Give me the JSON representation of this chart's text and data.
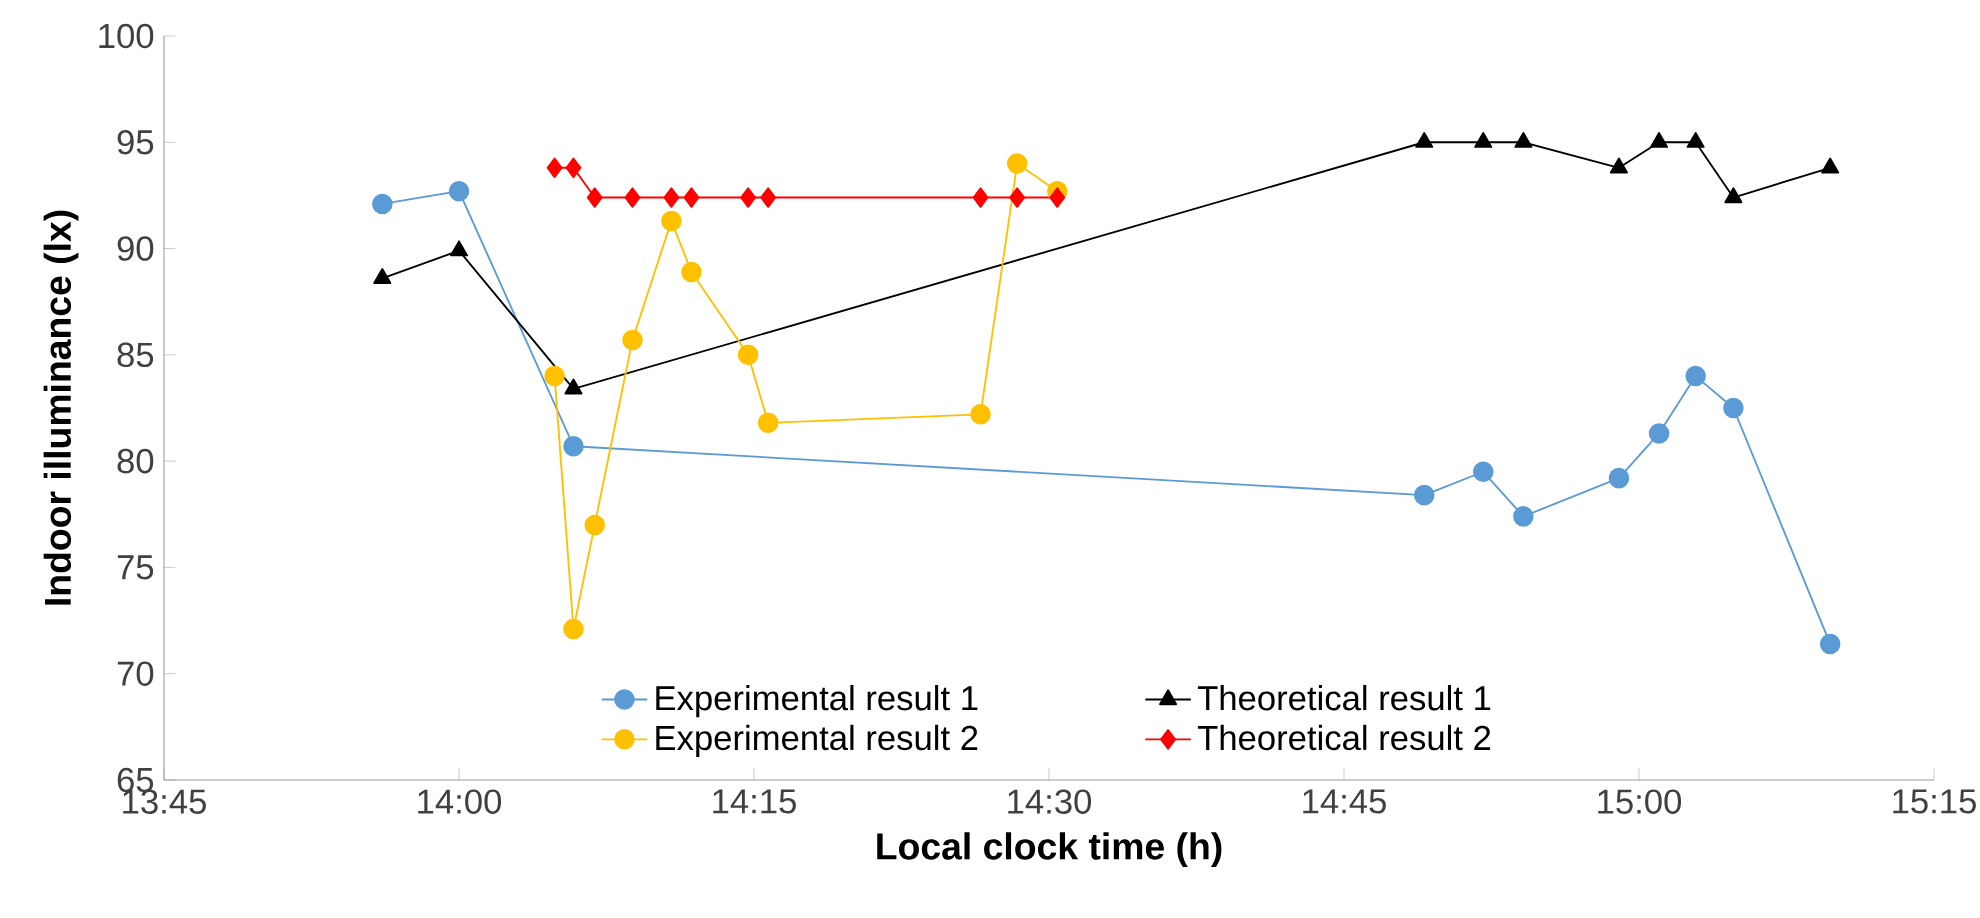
{
  "chart_data": {
    "type": "line",
    "xlabel": "Local clock time (h)",
    "ylabel": "Indoor illuminance (lx)",
    "xlim": [
      13.75,
      15.25
    ],
    "xticks": [
      {
        "value": 13.75,
        "label": "13:45"
      },
      {
        "value": 14.0,
        "label": "14:00"
      },
      {
        "value": 14.25,
        "label": "14:15"
      },
      {
        "value": 14.5,
        "label": "14:30"
      },
      {
        "value": 14.75,
        "label": "14:45"
      },
      {
        "value": 15.0,
        "label": "15:00"
      },
      {
        "value": 15.25,
        "label": "15:15"
      }
    ],
    "ylim": [
      65,
      100
    ],
    "yticks": [
      65,
      70,
      75,
      80,
      85,
      90,
      95,
      100
    ],
    "grid": false,
    "legend": "bottom",
    "series": [
      {
        "name": "Experimental result 1",
        "color": "#5b9bd5",
        "marker": "circle",
        "x": [
          13.935,
          14.0,
          14.097,
          14.818,
          14.868,
          14.902,
          14.983,
          15.017,
          15.048,
          15.08,
          15.162
        ],
        "values": [
          92.1,
          92.7,
          80.7,
          78.4,
          79.5,
          77.4,
          79.2,
          81.3,
          84.0,
          82.5,
          71.4
        ]
      },
      {
        "name": "Theoretical result 1",
        "color": "#000000",
        "marker": "triangle",
        "x": [
          13.935,
          14.0,
          14.097,
          14.818,
          14.868,
          14.902,
          14.983,
          15.017,
          15.048,
          15.08,
          15.162
        ],
        "values": [
          88.6,
          89.9,
          83.4,
          95.0,
          95.0,
          95.0,
          93.8,
          95.0,
          95.0,
          92.4,
          93.8
        ]
      },
      {
        "name": "Experimental result 2",
        "color": "#ffc000",
        "marker": "circle",
        "x": [
          14.081,
          14.097,
          14.115,
          14.147,
          14.18,
          14.197,
          14.245,
          14.262,
          14.442,
          14.473,
          14.507
        ],
        "values": [
          84.0,
          72.1,
          77.0,
          85.7,
          91.3,
          88.9,
          85.0,
          81.8,
          82.2,
          94.0,
          92.7
        ]
      },
      {
        "name": "Theoretical result 2",
        "color": "#ff0000",
        "marker": "diamond",
        "x": [
          14.081,
          14.097,
          14.115,
          14.147,
          14.18,
          14.197,
          14.245,
          14.262,
          14.442,
          14.473,
          14.507
        ],
        "values": [
          93.8,
          93.8,
          92.4,
          92.4,
          92.4,
          92.4,
          92.4,
          92.4,
          92.4,
          92.4,
          92.4
        ]
      }
    ]
  }
}
